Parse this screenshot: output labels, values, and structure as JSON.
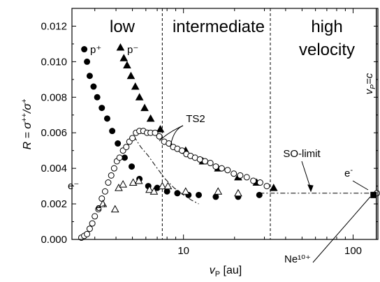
{
  "chart_data": {
    "type": "scatter",
    "x_scale": "log",
    "xlim": [
      2.2,
      140
    ],
    "ylim": [
      0,
      0.013
    ],
    "xlabel": {
      "main": "v",
      "sub": "P",
      "unit": " [au]"
    },
    "ylabel": {
      "main": "R = σ",
      "sup1": "++",
      "mid": "/σ",
      "sup2": "+"
    },
    "x_ticks": [
      10,
      100
    ],
    "x_tick_labels": [
      "10",
      "100"
    ],
    "y_ticks": [
      0,
      0.002,
      0.004,
      0.006,
      0.008,
      0.01,
      0.012
    ],
    "y_tick_labels": [
      "0.000",
      "0.002",
      "0.004",
      "0.006",
      "0.008",
      "0.010",
      "0.012"
    ],
    "regions": [
      {
        "label": "low",
        "x": 3.4
      },
      {
        "label": "intermediate",
        "x": 16
      },
      {
        "label": "high",
        "x": 67
      },
      {
        "label": "velocity",
        "x": 67
      }
    ],
    "boundaries": [
      7.5,
      32.5,
      137
    ],
    "series": [
      {
        "name": "p⁺",
        "marker": "filled-circle",
        "x": [
          2.6,
          2.7,
          2.8,
          2.95,
          3.1,
          3.3,
          3.55,
          3.8,
          4.1,
          4.5,
          4.95,
          5.5,
          6.2,
          7.0,
          8.0,
          9.2,
          10.7,
          12.3,
          15.5,
          21.0,
          28.0
        ],
        "y": [
          0.0107,
          0.01,
          0.0092,
          0.0086,
          0.008,
          0.0074,
          0.0068,
          0.0061,
          0.0054,
          0.0046,
          0.0041,
          0.0034,
          0.003,
          0.0029,
          0.0027,
          0.0026,
          0.0025,
          0.0025,
          0.0024,
          0.0024,
          0.0025
        ]
      },
      {
        "name": "p⁻",
        "marker": "filled-triangle",
        "x": [
          4.25,
          4.45,
          4.65,
          4.9,
          5.2,
          5.5,
          5.9,
          6.4,
          7.3,
          10.3,
          13.0,
          16.0,
          21.0,
          27.0,
          34.0
        ],
        "y": [
          0.0108,
          0.0102,
          0.0098,
          0.0092,
          0.0086,
          0.008,
          0.0074,
          0.0068,
          0.0062,
          0.005,
          0.0044,
          0.004,
          0.0035,
          0.0032,
          0.0029
        ]
      },
      {
        "name": "e⁻",
        "marker": "open-circle",
        "x": [
          2.5,
          2.6,
          2.7,
          2.8,
          2.9,
          3.0,
          3.15,
          3.3,
          3.45,
          3.6,
          3.75,
          3.9,
          4.05,
          4.2,
          4.4,
          4.6,
          4.8,
          5.0,
          5.25,
          5.5,
          5.8,
          6.1,
          6.4,
          6.8,
          7.2,
          7.7,
          8.2,
          8.7,
          9.2,
          9.8,
          10.4,
          11.0,
          11.7,
          12.5,
          13.4,
          14.4,
          15.5,
          16.8,
          18.2,
          19.8,
          21.6,
          23.6,
          25.8,
          28.3,
          31.0,
          138
        ],
        "y": [
          0.0001,
          0.0002,
          0.0003,
          0.0006,
          0.0009,
          0.0013,
          0.0017,
          0.0023,
          0.0027,
          0.0032,
          0.0036,
          0.004,
          0.0044,
          0.0046,
          0.005,
          0.0052,
          0.0055,
          0.0057,
          0.006,
          0.0061,
          0.0061,
          0.006,
          0.006,
          0.006,
          0.0058,
          0.0055,
          0.0054,
          0.0052,
          0.0051,
          0.005,
          0.0048,
          0.0047,
          0.0046,
          0.0045,
          0.0044,
          0.0043,
          0.0041,
          0.004,
          0.0039,
          0.0037,
          0.0036,
          0.0035,
          0.0033,
          0.0032,
          0.003,
          0.0026
        ]
      },
      {
        "name": "e⁺",
        "marker": "open-triangle",
        "x": [
          3.35,
          3.95,
          4.15,
          4.4,
          5.05,
          5.45,
          6.3,
          6.7,
          7.5,
          8.1,
          10.3,
          16.0,
          21.0
        ],
        "y": [
          0.002,
          0.0017,
          0.0029,
          0.0031,
          0.0032,
          0.0033,
          0.0028,
          0.0027,
          0.003,
          0.003,
          0.0027,
          0.0027,
          0.0026
        ]
      },
      {
        "name": "Ne¹⁰⁺",
        "marker": "filled-square",
        "x": [
          132
        ],
        "y": [
          0.0025
        ]
      }
    ],
    "curves": [
      {
        "name": "TS2",
        "style": "dash-dot",
        "x": [
          5.1,
          5.6,
          6.2,
          7.0,
          7.8,
          8.8,
          10.0,
          11.2,
          12.3
        ],
        "y": [
          0.0058,
          0.0052,
          0.0047,
          0.004,
          0.0034,
          0.0029,
          0.0025,
          0.0022,
          0.002
        ]
      },
      {
        "name": "SO-limit",
        "style": "dash-dot",
        "x": [
          28,
          138
        ],
        "y": [
          0.0026,
          0.0026
        ]
      }
    ],
    "annotations": [
      {
        "text": "TS2"
      },
      {
        "text": "SO-limit"
      },
      {
        "text": "v"
      },
      {
        "text": "e"
      }
    ]
  }
}
